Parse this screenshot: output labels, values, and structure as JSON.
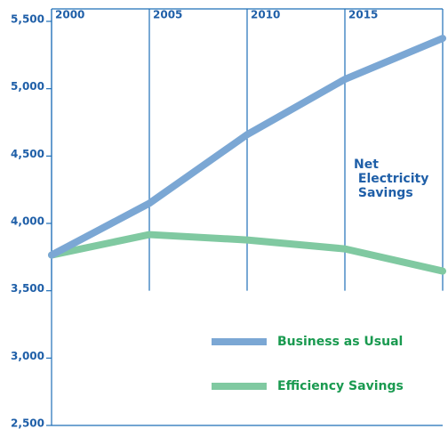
{
  "chart_data": {
    "type": "line",
    "annotation": "Net Electricity Savings",
    "x": [
      2000,
      2005,
      2010,
      2015,
      2020
    ],
    "xlim": [
      2000,
      2020
    ],
    "xticks": [
      2000,
      2005,
      2010,
      2015
    ],
    "ylim": [
      2500,
      5500
    ],
    "yticks": [
      {
        "value": 2500,
        "label": "2,500"
      },
      {
        "value": 3000,
        "label": "3,000"
      },
      {
        "value": 3500,
        "label": "3,500"
      },
      {
        "value": 4000,
        "label": "4,000"
      },
      {
        "value": 4500,
        "label": "4,500"
      },
      {
        "value": 5000,
        "label": "5,000"
      },
      {
        "value": 5500,
        "label": "5,500"
      }
    ],
    "grid": true,
    "legend": "lower right",
    "series": [
      {
        "name": "Business as Usual",
        "color": "#7ba7d4",
        "values": [
          3765,
          4149,
          4659,
          5070,
          5374
        ]
      },
      {
        "name": "Efficiency Savings",
        "color": "#80c9a1",
        "values": [
          3765,
          3917,
          3877,
          3811,
          3646
        ]
      }
    ]
  }
}
